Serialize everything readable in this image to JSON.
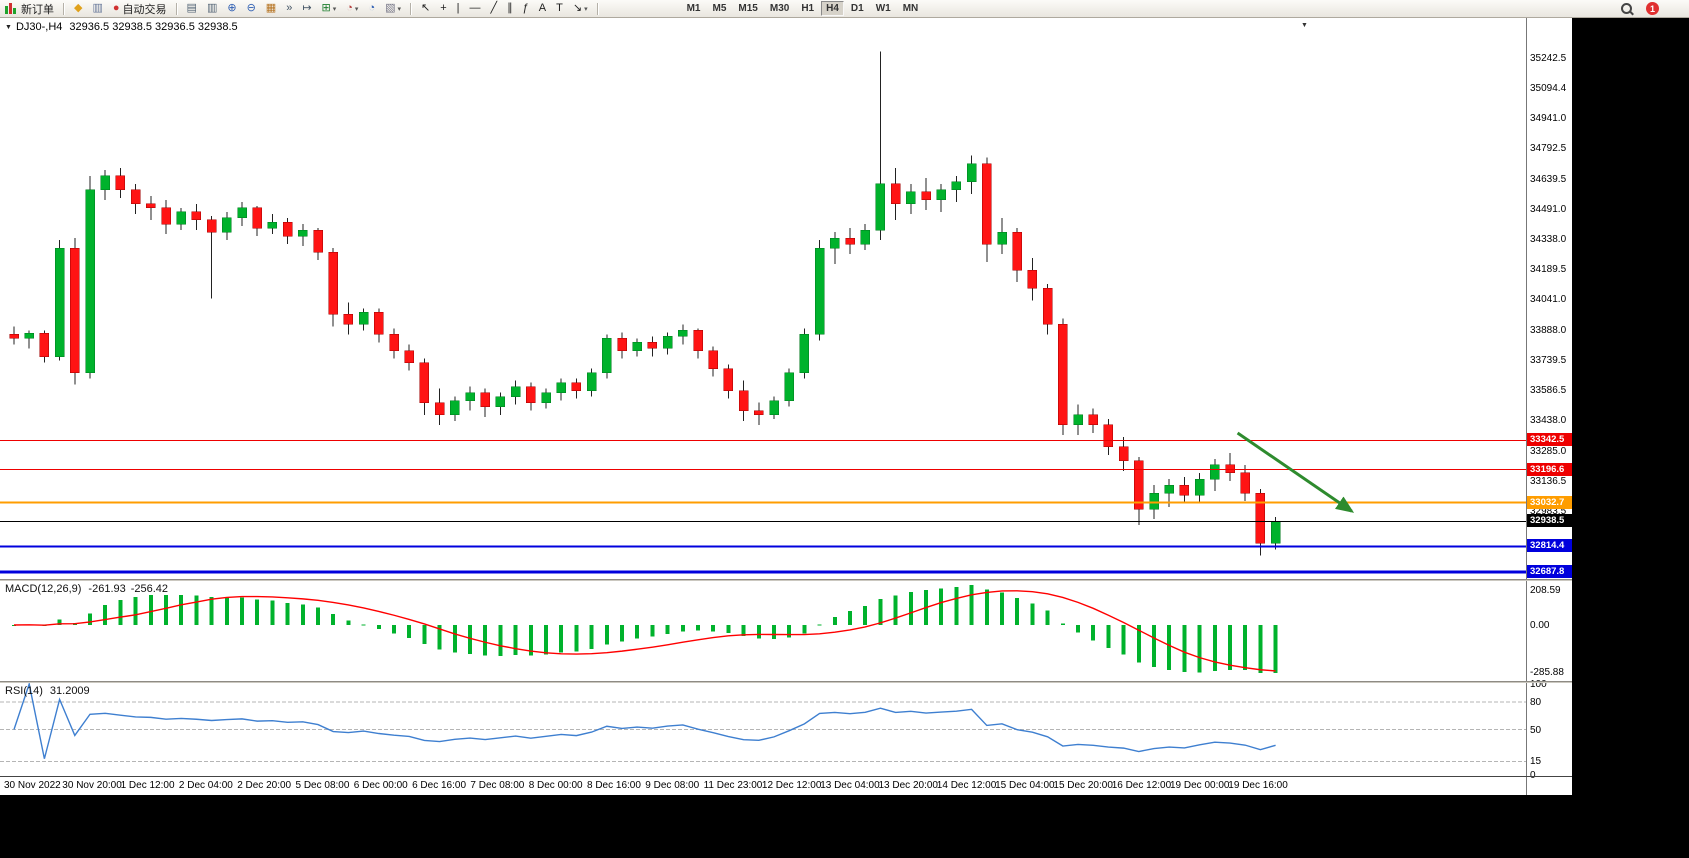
{
  "toolbar": {
    "items": [
      {
        "type": "button",
        "name": "new-order-button",
        "icon": "candles",
        "label": "新订单"
      },
      {
        "type": "sep"
      },
      {
        "type": "icon",
        "name": "metaeditor-button",
        "glyph": "◆",
        "color": "#e0a11b"
      },
      {
        "type": "icon",
        "name": "market-watch-button",
        "glyph": "▥",
        "color": "#667799"
      },
      {
        "type": "button",
        "name": "autotrading-button",
        "glyph": "●",
        "color": "#d03030",
        "label": "自动交易"
      },
      {
        "type": "sep"
      },
      {
        "type": "icon",
        "name": "tile-horizontal-button",
        "glyph": "▤",
        "color": "#556677"
      },
      {
        "type": "icon",
        "name": "tile-vertical-button",
        "glyph": "▥",
        "color": "#556677"
      },
      {
        "type": "icon",
        "name": "zoom-in-button",
        "glyph": "⊕",
        "color": "#2f5fb3"
      },
      {
        "type": "icon",
        "name": "zoom-out-button",
        "glyph": "⊖",
        "color": "#2f5fb3"
      },
      {
        "type": "icon",
        "name": "tile-windows-button",
        "glyph": "▦",
        "color": "#b5721f"
      },
      {
        "type": "icon",
        "name": "auto-scroll-button",
        "glyph": "»",
        "color": "#445566"
      },
      {
        "type": "icon",
        "name": "chart-shift-button",
        "glyph": "↦",
        "color": "#445566"
      },
      {
        "type": "icon",
        "name": "new-chart-button",
        "glyph": "⊞",
        "color": "#1f7f2f",
        "dropdown": true
      },
      {
        "type": "icon",
        "name": "periods-button",
        "glyph": "◔",
        "color": "#b33a3a",
        "dropdown": true
      },
      {
        "type": "icon",
        "name": "refresh-button",
        "glyph": "◔",
        "color": "#2f5fb3"
      },
      {
        "type": "icon",
        "name": "templates-button",
        "glyph": "▧",
        "color": "#777788",
        "dropdown": true
      },
      {
        "type": "sep"
      },
      {
        "type": "icon",
        "name": "cursor-button",
        "glyph": "↖",
        "color": "#222222"
      },
      {
        "type": "icon",
        "name": "crosshair-button",
        "glyph": "+",
        "color": "#222222"
      },
      {
        "type": "icon",
        "name": "vertical-line-button",
        "glyph": "|",
        "color": "#222222"
      },
      {
        "type": "icon",
        "name": "horizontal-line-button",
        "glyph": "—",
        "color": "#222222"
      },
      {
        "type": "icon",
        "name": "trendline-button",
        "glyph": "╱",
        "color": "#222222"
      },
      {
        "type": "icon",
        "name": "channel-button",
        "glyph": "∥",
        "color": "#222222"
      },
      {
        "type": "icon",
        "name": "fibonacci-button",
        "glyph": "ƒ",
        "color": "#222222"
      },
      {
        "type": "icon",
        "name": "text-button",
        "glyph": "A",
        "color": "#222222"
      },
      {
        "type": "icon",
        "name": "text-label-button",
        "glyph": "T",
        "color": "#222222"
      },
      {
        "type": "icon",
        "name": "arrows-button",
        "glyph": "↘",
        "color": "#222222",
        "dropdown": true
      },
      {
        "type": "sep"
      }
    ],
    "timeframes": [
      "M1",
      "M5",
      "M15",
      "M30",
      "H1",
      "H4",
      "D1",
      "W1",
      "MN"
    ],
    "active_timeframe": "H4",
    "notification_count": "1"
  },
  "chart_header": {
    "collapse_glyph": "▼",
    "symbol_period": "DJ30-,H4",
    "ohlc": "32936.5 32938.5 32936.5 32938.5",
    "shift_marker_glyph": "▼"
  },
  "price_scale": {
    "price_min": 32652,
    "price_max": 35446,
    "ticks": [
      "35242.5",
      "35094.4",
      "34941.0",
      "34792.5",
      "34639.5",
      "34491.0",
      "34338.0",
      "34189.5",
      "34041.0",
      "33888.0",
      "33739.5",
      "33586.5",
      "33438.0",
      "33285.0",
      "33136.5",
      "32983.5"
    ]
  },
  "hlines": [
    {
      "price": 33342.5,
      "label": "33342.5",
      "color": "#ee0000",
      "width": 1
    },
    {
      "price": 33196.6,
      "label": "33196.6",
      "color": "#ee0000",
      "width": 1
    },
    {
      "price": 33032.7,
      "label": "33032.7",
      "color": "#ff9d00",
      "width": 2
    },
    {
      "price": 32938.5,
      "label": "32938.5",
      "color": "#000000",
      "width": 1
    },
    {
      "price": 32814.4,
      "label": "32814.4",
      "color": "#0000dd",
      "width": 2
    },
    {
      "price": 32687.8,
      "label": "32687.8",
      "color": "#0000dd",
      "width": 3
    }
  ],
  "arrow": {
    "from_bar": 80.5,
    "from_price": 33379,
    "to_bar": 88,
    "to_price": 32990,
    "color": "#2e8b2e"
  },
  "chart_data": {
    "type": "candlestick",
    "symbol": "DJ30-",
    "period": "H4",
    "up_color": "#00b22c",
    "down_color": "#ff1414",
    "candles": [
      [
        33870,
        33910,
        33820,
        33850
      ],
      [
        33850,
        33890,
        33800,
        33875
      ],
      [
        33875,
        33890,
        33730,
        33760
      ],
      [
        33760,
        34340,
        33740,
        34300
      ],
      [
        34300,
        34350,
        33620,
        33680
      ],
      [
        33680,
        34660,
        33650,
        34590
      ],
      [
        34590,
        34690,
        34540,
        34660
      ],
      [
        34660,
        34700,
        34550,
        34590
      ],
      [
        34590,
        34620,
        34470,
        34520
      ],
      [
        34520,
        34560,
        34440,
        34500
      ],
      [
        34500,
        34540,
        34370,
        34420
      ],
      [
        34420,
        34500,
        34390,
        34480
      ],
      [
        34480,
        34520,
        34390,
        34440
      ],
      [
        34440,
        34460,
        34050,
        34380
      ],
      [
        34380,
        34480,
        34340,
        34450
      ],
      [
        34450,
        34530,
        34410,
        34500
      ],
      [
        34500,
        34510,
        34360,
        34400
      ],
      [
        34400,
        34470,
        34370,
        34430
      ],
      [
        34430,
        34450,
        34320,
        34360
      ],
      [
        34360,
        34420,
        34310,
        34390
      ],
      [
        34390,
        34400,
        34240,
        34280
      ],
      [
        34280,
        34300,
        33910,
        33970
      ],
      [
        33970,
        34030,
        33870,
        33920
      ],
      [
        33920,
        34000,
        33890,
        33980
      ],
      [
        33980,
        34000,
        33830,
        33870
      ],
      [
        33870,
        33900,
        33750,
        33790
      ],
      [
        33790,
        33820,
        33690,
        33730
      ],
      [
        33730,
        33750,
        33470,
        33530
      ],
      [
        33530,
        33600,
        33420,
        33470
      ],
      [
        33470,
        33560,
        33440,
        33540
      ],
      [
        33540,
        33610,
        33490,
        33580
      ],
      [
        33580,
        33600,
        33460,
        33510
      ],
      [
        33510,
        33580,
        33470,
        33560
      ],
      [
        33560,
        33640,
        33520,
        33610
      ],
      [
        33610,
        33630,
        33490,
        33530
      ],
      [
        33530,
        33600,
        33500,
        33580
      ],
      [
        33580,
        33650,
        33540,
        33630
      ],
      [
        33630,
        33650,
        33550,
        33590
      ],
      [
        33590,
        33700,
        33560,
        33680
      ],
      [
        33680,
        33870,
        33650,
        33850
      ],
      [
        33850,
        33880,
        33750,
        33790
      ],
      [
        33790,
        33850,
        33760,
        33830
      ],
      [
        33830,
        33860,
        33760,
        33800
      ],
      [
        33800,
        33880,
        33770,
        33860
      ],
      [
        33860,
        33920,
        33820,
        33890
      ],
      [
        33890,
        33900,
        33750,
        33790
      ],
      [
        33790,
        33810,
        33660,
        33700
      ],
      [
        33700,
        33720,
        33550,
        33590
      ],
      [
        33590,
        33640,
        33440,
        33490
      ],
      [
        33490,
        33530,
        33420,
        33470
      ],
      [
        33470,
        33560,
        33450,
        33540
      ],
      [
        33540,
        33700,
        33510,
        33680
      ],
      [
        33680,
        33900,
        33650,
        33870
      ],
      [
        33870,
        34340,
        33840,
        34300
      ],
      [
        34300,
        34380,
        34220,
        34350
      ],
      [
        34350,
        34400,
        34270,
        34320
      ],
      [
        34320,
        34420,
        34290,
        34390
      ],
      [
        34390,
        35280,
        34340,
        34620
      ],
      [
        34620,
        34700,
        34440,
        34520
      ],
      [
        34520,
        34620,
        34470,
        34580
      ],
      [
        34580,
        34650,
        34490,
        34540
      ],
      [
        34540,
        34620,
        34480,
        34590
      ],
      [
        34590,
        34660,
        34530,
        34630
      ],
      [
        34630,
        34760,
        34570,
        34720
      ],
      [
        34720,
        34750,
        34230,
        34320
      ],
      [
        34320,
        34450,
        34270,
        34380
      ],
      [
        34380,
        34400,
        34130,
        34190
      ],
      [
        34190,
        34250,
        34040,
        34100
      ],
      [
        34100,
        34120,
        33870,
        33920
      ],
      [
        33920,
        33950,
        33370,
        33420
      ],
      [
        33420,
        33520,
        33370,
        33470
      ],
      [
        33470,
        33500,
        33380,
        33420
      ],
      [
        33420,
        33450,
        33270,
        33310
      ],
      [
        33310,
        33360,
        33190,
        33240
      ],
      [
        33240,
        33260,
        32920,
        33000
      ],
      [
        33000,
        33120,
        32950,
        33080
      ],
      [
        33080,
        33150,
        33010,
        33120
      ],
      [
        33120,
        33160,
        33030,
        33070
      ],
      [
        33070,
        33180,
        33030,
        33150
      ],
      [
        33150,
        33250,
        33090,
        33220
      ],
      [
        33220,
        33280,
        33140,
        33180
      ],
      [
        33180,
        33220,
        33040,
        33080
      ],
      [
        33080,
        33100,
        32770,
        32830
      ],
      [
        32830,
        32960,
        32800,
        32938.5
      ]
    ]
  },
  "macd": {
    "title": "MACD(12,26,9)",
    "value_main": "-261.93",
    "value_signal": "-256.42",
    "fast": 12,
    "slow": 26,
    "signal": 9,
    "histogram_color": "#00b22c",
    "signal_color": "#ff0000",
    "scale": [
      "208.59",
      "0.00",
      "-285.88"
    ]
  },
  "rsi": {
    "title": "RSI(14)",
    "value": "31.2009",
    "period": 14,
    "line_color": "#3e7fd0",
    "levels": [
      80,
      50,
      15
    ],
    "scale_labels": [
      "100",
      "80",
      "50",
      "15",
      "0"
    ]
  },
  "time_axis": [
    "30 Nov 2022",
    "30 Nov 20:00",
    "1 Dec 12:00",
    "2 Dec 04:00",
    "2 Dec 20:00",
    "5 Dec 08:00",
    "6 Dec 00:00",
    "6 Dec 16:00",
    "7 Dec 08:00",
    "8 Dec 00:00",
    "8 Dec 16:00",
    "9 Dec 08:00",
    "11 Dec 23:00",
    "12 Dec 12:00",
    "13 Dec 04:00",
    "13 Dec 20:00",
    "14 Dec 12:00",
    "15 Dec 04:00",
    "15 Dec 20:00",
    "16 Dec 12:00",
    "19 Dec 00:00",
    "19 Dec 16:00"
  ]
}
